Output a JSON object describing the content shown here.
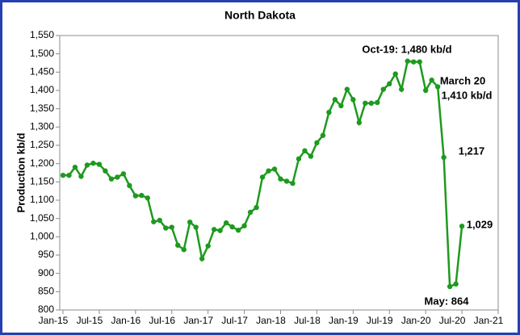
{
  "chart_data": {
    "type": "line",
    "title": "North Dakota",
    "y_label": "Production kb/d",
    "categories": [
      "Jan-15",
      null,
      null,
      null,
      null,
      null,
      "Jul-15",
      null,
      null,
      null,
      null,
      null,
      "Jan-16",
      null,
      null,
      null,
      null,
      null,
      "Jul-16",
      null,
      null,
      null,
      null,
      null,
      "Jan-17",
      null,
      null,
      null,
      null,
      null,
      "Jul-17",
      null,
      null,
      null,
      null,
      null,
      "Jan-18",
      null,
      null,
      null,
      null,
      null,
      "Jul-18",
      null,
      null,
      null,
      null,
      null,
      "Jan-19",
      null,
      null,
      null,
      null,
      null,
      "Jul-19",
      null,
      null,
      null,
      null,
      null,
      "Jan-20",
      null,
      null,
      null,
      null,
      null,
      "Jul-20",
      null,
      null,
      null,
      null,
      null,
      "Jan-21"
    ],
    "series": [
      {
        "name": "Production",
        "color": "#1e9a1e",
        "values": [
          1168,
          1168,
          1190,
          1165,
          1196,
          1201,
          1198,
          1180,
          1158,
          1163,
          1172,
          1140,
          1112,
          1113,
          1106,
          1041,
          1045,
          1024,
          1026,
          977,
          965,
          1040,
          1026,
          940,
          975,
          1020,
          1017,
          1038,
          1027,
          1018,
          1030,
          1067,
          1080,
          1163,
          1180,
          1185,
          1158,
          1152,
          1146,
          1213,
          1235,
          1220,
          1257,
          1277,
          1340,
          1375,
          1358,
          1403,
          1375,
          1312,
          1365,
          1365,
          1367,
          1403,
          1418,
          1445,
          1403,
          1480,
          1478,
          1478,
          1400,
          1428,
          1410,
          1217,
          864,
          871,
          1029,
          null,
          null,
          null,
          null,
          null,
          null
        ]
      }
    ],
    "ylim": [
      800,
      1550
    ],
    "yticks": [
      800,
      850,
      900,
      950,
      {
        "value": 1000,
        "label": "1,000"
      },
      {
        "value": 1050,
        "label": "1,050"
      },
      {
        "value": 1100,
        "label": "1,100"
      },
      {
        "value": 1150,
        "label": "1,150"
      },
      {
        "value": 1200,
        "label": "1,200"
      },
      {
        "value": 1250,
        "label": "1,250"
      },
      {
        "value": 1300,
        "label": "1,300"
      },
      {
        "value": 1350,
        "label": "1,350"
      },
      {
        "value": 1400,
        "label": "1,400"
      },
      {
        "value": 1450,
        "label": "1,450"
      },
      {
        "value": 1500,
        "label": "1,500"
      },
      {
        "value": 1550,
        "label": "1,550"
      }
    ],
    "grid": false,
    "annotations": [
      "Oct-19: 1,480 kb/d",
      "March 20",
      "1,410 kb/d",
      "1,217",
      "1,029",
      "May: 864"
    ]
  }
}
